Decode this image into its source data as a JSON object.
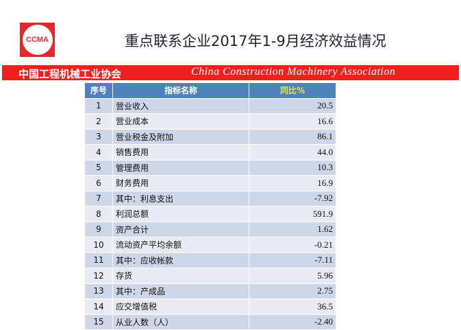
{
  "logo": {
    "text": "CCMA"
  },
  "title": "重点联系企业2017年1-9月经济效益情况",
  "banner": {
    "cn": "中国工程机械工业协会",
    "en": "China Construction Machinery Association"
  },
  "table": {
    "headers": [
      "序号",
      "指标名称",
      "同比%"
    ],
    "rows": [
      [
        "1",
        "营业收入",
        "20.5"
      ],
      [
        "2",
        "营业成本",
        "16.6"
      ],
      [
        "3",
        "营业税金及附加",
        "86.1"
      ],
      [
        "4",
        "销售费用",
        "44.0"
      ],
      [
        "5",
        "管理费用",
        "10.3"
      ],
      [
        "6",
        "财务费用",
        "16.9"
      ],
      [
        "7",
        "其中：利息支出",
        "-7.92"
      ],
      [
        "8",
        "利润总额",
        "591.9"
      ],
      [
        "9",
        "资产合计",
        "1.62"
      ],
      [
        "10",
        "流动资产平均余额",
        "-0.21"
      ],
      [
        "11",
        "其中：应收帐款",
        "-7.11"
      ],
      [
        "12",
        "存货",
        "5.96"
      ],
      [
        "13",
        "其中：产成品",
        "2.75"
      ],
      [
        "14",
        "应交增值税",
        "36.5"
      ],
      [
        "15",
        "从业人数（人）",
        "-2.40"
      ]
    ]
  },
  "colors": {
    "banner": "#f21f1f",
    "header": "#4f81bd"
  }
}
